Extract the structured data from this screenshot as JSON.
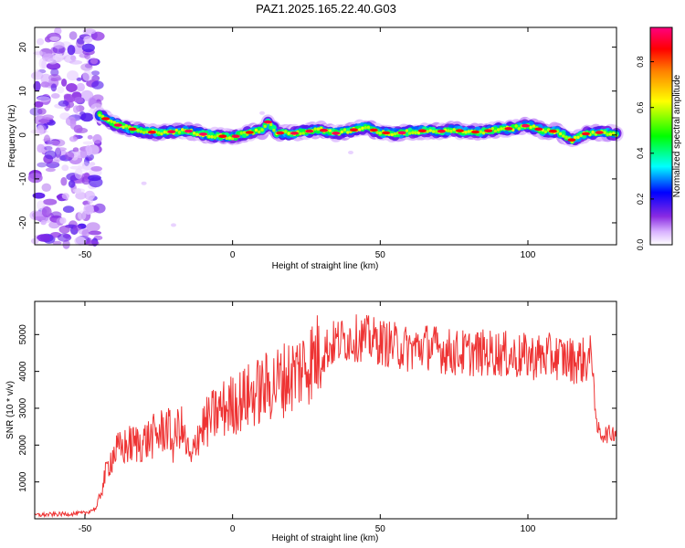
{
  "title": "PAZ1.2025.165.22.40.G03",
  "chart_data": [
    {
      "type": "heatmap",
      "xlabel": "Height of straight line (km)",
      "ylabel": "Frequency (Hz)",
      "xlim": [
        -67,
        130
      ],
      "ylim": [
        -25,
        24.5
      ],
      "xticks": [
        -50,
        0,
        50,
        100
      ],
      "yticks": [
        20,
        10,
        0,
        -10,
        -20
      ],
      "colorbar": {
        "label": "Normalized spectral amplitude",
        "range": [
          0,
          0.95
        ],
        "ticks": [
          0.0,
          0.2,
          0.4,
          0.6,
          0.8
        ],
        "colors": [
          "#ffffff",
          "#e6ccff",
          "#8a2be2",
          "#0000ff",
          "#00ffff",
          "#00ff00",
          "#ffff00",
          "#ff8000",
          "#ff0000",
          "#ff0080"
        ]
      },
      "ridge": {
        "x": [
          -45,
          -40,
          -35,
          -30,
          -25,
          -20,
          -15,
          -10,
          -5,
          0,
          5,
          10,
          12,
          15,
          20,
          25,
          30,
          35,
          40,
          45,
          50,
          55,
          60,
          65,
          70,
          75,
          80,
          85,
          90,
          95,
          100,
          105,
          110,
          115,
          120,
          125,
          130
        ],
        "y": [
          4.5,
          2.5,
          1.5,
          0.8,
          0.5,
          0.8,
          0.9,
          0.2,
          -0.2,
          -0.5,
          0.5,
          1,
          3,
          0.5,
          0.3,
          0.8,
          1.2,
          0.4,
          1,
          1.8,
          0.6,
          0.3,
          0.7,
          1,
          0.8,
          1.2,
          0.6,
          0.8,
          1.3,
          1.5,
          2.2,
          1,
          0.8,
          -1.2,
          0.4,
          0.6,
          0.2
        ]
      },
      "noise_region_x": [
        -67,
        -45
      ]
    },
    {
      "type": "line",
      "xlabel": "Height of straight line (km)",
      "ylabel": "SNR (10 * v/v)",
      "xlim": [
        -67,
        130
      ],
      "ylim": [
        0,
        5900
      ],
      "xticks": [
        -50,
        0,
        50,
        100
      ],
      "yticks": [
        1000,
        2000,
        3000,
        4000,
        5000
      ],
      "color": "#ee3333",
      "series": [
        {
          "x": [
            -67,
            -60,
            -50,
            -46,
            -44,
            -42,
            -40,
            -35,
            -30,
            -25,
            -22,
            -20,
            -18,
            -15,
            -14,
            -12,
            -10,
            -5,
            0,
            5,
            10,
            15,
            20,
            25,
            30,
            35,
            40,
            45,
            50,
            55,
            60,
            65,
            70,
            75,
            80,
            85,
            90,
            95,
            100,
            105,
            110,
            115,
            120,
            122,
            123,
            125,
            128,
            130
          ],
          "y": [
            100,
            120,
            150,
            300,
            900,
            1500,
            1800,
            2000,
            2100,
            2300,
            2500,
            2000,
            2600,
            1800,
            1500,
            2300,
            2500,
            2900,
            3100,
            3300,
            3500,
            3700,
            3900,
            4200,
            4500,
            4800,
            4900,
            4900,
            4800,
            4700,
            4600,
            4700,
            4600,
            4500,
            4500,
            4500,
            4500,
            4400,
            4400,
            4400,
            4400,
            4300,
            4300,
            4400,
            2500,
            2300,
            2300,
            2400
          ]
        }
      ]
    }
  ]
}
